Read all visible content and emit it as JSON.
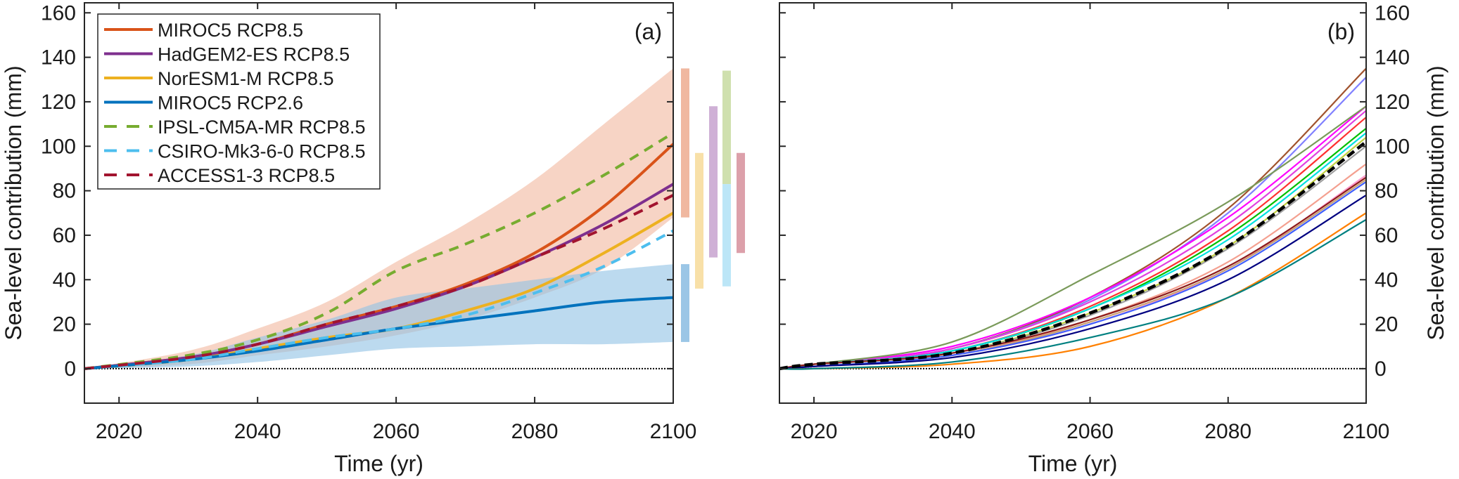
{
  "chart_data": [
    {
      "type": "line",
      "panel_label": "(a)",
      "xlabel": "Time (yr)",
      "ylabel": "Sea-level contribution (mm)",
      "xlim": [
        2015,
        2100
      ],
      "ylim": [
        -15.5,
        164.5
      ],
      "xticks": [
        2020,
        2040,
        2060,
        2080,
        2100
      ],
      "yticks": [
        0,
        20,
        40,
        60,
        80,
        100,
        120,
        140,
        160
      ],
      "grid": false,
      "legend_position": "top-left",
      "x": [
        2015,
        2030,
        2040,
        2050,
        2060,
        2070,
        2080,
        2090,
        2100
      ],
      "series": [
        {
          "name": "MIROC5 RCP8.5",
          "color": "#d95319",
          "dash": false,
          "values": [
            0,
            5,
            11,
            20,
            28,
            38,
            52,
            73,
            101
          ]
        },
        {
          "name": "HadGEM2-ES RCP8.5",
          "color": "#7e2f8e",
          "dash": false,
          "values": [
            0,
            5,
            11,
            19,
            27,
            37,
            50,
            65,
            83
          ]
        },
        {
          "name": "NorESM1-M RCP8.5",
          "color": "#edb120",
          "dash": false,
          "values": [
            0,
            4,
            9,
            14,
            18,
            26,
            36,
            52,
            70
          ]
        },
        {
          "name": "MIROC5 RCP2.6",
          "color": "#0072bd",
          "dash": false,
          "values": [
            0,
            4,
            8,
            13,
            18,
            22,
            26,
            30,
            32
          ]
        },
        {
          "name": "IPSL-CM5A-MR RCP8.5",
          "color": "#77ac30",
          "dash": true,
          "values": [
            0,
            6,
            13,
            25,
            44,
            56,
            70,
            87,
            106
          ]
        },
        {
          "name": "CSIRO-Mk3-6-0 RCP8.5",
          "color": "#4dbeee",
          "dash": true,
          "values": [
            0,
            4,
            9,
            14,
            18,
            24,
            34,
            46,
            62
          ]
        },
        {
          "name": "ACCESS1-3 RCP8.5",
          "color": "#a2142f",
          "dash": true,
          "values": [
            0,
            5,
            11,
            20,
            28,
            37,
            50,
            63,
            78
          ]
        }
      ],
      "bands": [
        {
          "name": "MIROC5 RCP8.5 range",
          "color": "#f2b89e",
          "lower": [
            0,
            2,
            6,
            10,
            15,
            22,
            32,
            45,
            68
          ],
          "upper": [
            0,
            8,
            18,
            30,
            48,
            65,
            85,
            110,
            135
          ]
        },
        {
          "name": "MIROC5 RCP2.6 range",
          "color": "#8fc2e5",
          "lower": [
            0,
            1,
            3,
            6,
            9,
            10,
            11,
            11,
            12
          ],
          "upper": [
            0,
            6,
            14,
            22,
            32,
            36,
            40,
            44,
            47
          ]
        }
      ],
      "range_bars_2100": [
        {
          "name": "MIROC5 RCP8.5",
          "color": "#f0b8a0",
          "min": 68,
          "max": 135,
          "column": 0
        },
        {
          "name": "MIROC5 RCP2.6",
          "color": "#9bc6e6",
          "min": 12,
          "max": 47,
          "column": 0
        },
        {
          "name": "NorESM1-M RCP8.5",
          "color": "#f8e0a8",
          "min": 36,
          "max": 97,
          "column": 1
        },
        {
          "name": "HadGEM2-ES RCP8.5",
          "color": "#cfb0d6",
          "min": 50,
          "max": 118,
          "column": 2
        },
        {
          "name": "IPSL-CM5A-MR RCP8.5",
          "color": "#cfe0ae",
          "min": 83,
          "max": 134,
          "column": 3
        },
        {
          "name": "CSIRO-Mk3-6-0 RCP8.5",
          "color": "#bce6f7",
          "min": 37,
          "max": 83,
          "column": 3
        },
        {
          "name": "ACCESS1-3 RCP8.5",
          "color": "#dca0aa",
          "min": 52,
          "max": 97,
          "column": 4
        }
      ]
    },
    {
      "type": "line",
      "panel_label": "(b)",
      "xlabel": "Time (yr)",
      "ylabel": "Sea-level contribution (mm)",
      "xlim": [
        2015,
        2100
      ],
      "ylim": [
        -15.5,
        164.5
      ],
      "xticks": [
        2020,
        2040,
        2060,
        2080,
        2100
      ],
      "yticks": [
        0,
        20,
        40,
        60,
        80,
        100,
        120,
        140,
        160
      ],
      "grid": false,
      "x": [
        2015,
        2020,
        2040,
        2060,
        2080,
        2100
      ],
      "series": [
        {
          "color": "#a0522d",
          "dash": false,
          "values": [
            0,
            2,
            9,
            32,
            72,
            135
          ]
        },
        {
          "color": "#8080ff",
          "dash": false,
          "values": [
            0,
            2,
            9,
            31,
            70,
            131
          ]
        },
        {
          "color": "#ff00ff",
          "dash": false,
          "values": [
            0,
            2,
            10,
            32,
            68,
            118
          ]
        },
        {
          "color": "#e040e0",
          "dash": false,
          "values": [
            0,
            2,
            9,
            30,
            65,
            116
          ]
        },
        {
          "color": "#ff3030",
          "dash": false,
          "values": [
            0,
            2,
            8,
            28,
            62,
            113
          ]
        },
        {
          "color": "#7a9a5a",
          "dash": false,
          "values": [
            0,
            2,
            12,
            42,
            75,
            118
          ]
        },
        {
          "color": "#00c000",
          "dash": false,
          "values": [
            0,
            2,
            8,
            27,
            60,
            108
          ]
        },
        {
          "color": "#00e0e0",
          "dash": false,
          "values": [
            0,
            2,
            8,
            27,
            58,
            106
          ]
        },
        {
          "color": "#c0d040",
          "dash": false,
          "values": [
            0,
            2,
            7,
            25,
            55,
            104
          ]
        },
        {
          "color": "#a0a0a0",
          "dash": false,
          "values": [
            0,
            2,
            7,
            24,
            54,
            100
          ]
        },
        {
          "color": "#f4a090",
          "dash": false,
          "values": [
            0,
            1,
            6,
            22,
            48,
            92
          ]
        },
        {
          "color": "#ff99cc",
          "dash": false,
          "values": [
            0,
            1,
            6,
            20,
            45,
            87
          ]
        },
        {
          "color": "#8b1a1a",
          "dash": false,
          "values": [
            0,
            2,
            7,
            22,
            46,
            86
          ]
        },
        {
          "color": "#c8a070",
          "dash": false,
          "values": [
            0,
            1,
            6,
            21,
            45,
            85
          ]
        },
        {
          "color": "#4060ff",
          "dash": false,
          "values": [
            0,
            1,
            6,
            20,
            44,
            84
          ]
        },
        {
          "color": "#000080",
          "dash": false,
          "values": [
            0,
            1,
            5,
            18,
            40,
            78
          ]
        },
        {
          "color": "#ff8000",
          "dash": false,
          "values": [
            0,
            0,
            2,
            10,
            32,
            70
          ]
        },
        {
          "color": "#008080",
          "dash": false,
          "values": [
            0,
            0,
            3,
            14,
            32,
            67
          ]
        },
        {
          "color": "#000000",
          "dash": true,
          "values": [
            0,
            2,
            7,
            25,
            55,
            102
          ]
        }
      ]
    }
  ]
}
